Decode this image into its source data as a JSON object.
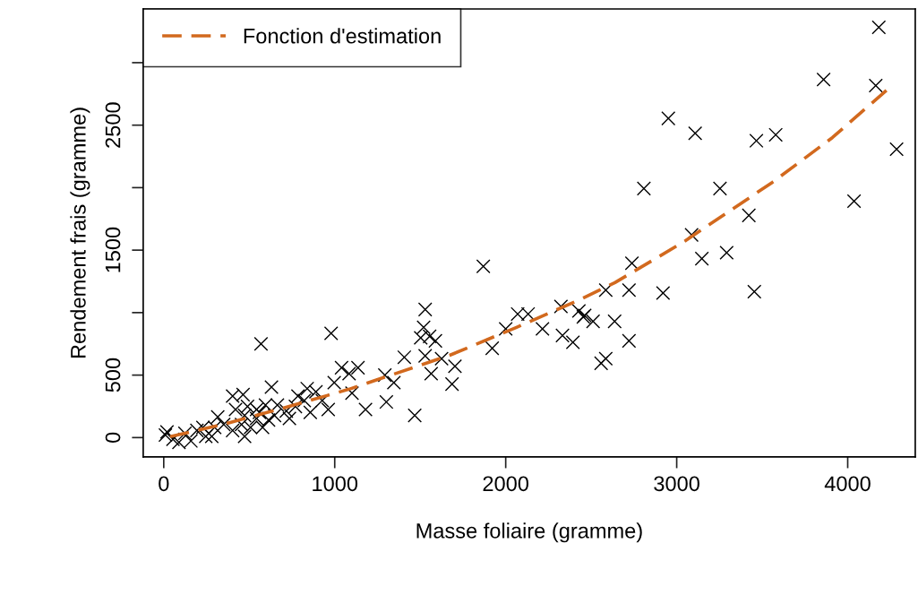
{
  "chart_data": {
    "type": "scatter",
    "xlabel": "Masse foliaire (gramme)",
    "ylabel": "Rendement frais (gramme)",
    "xlim": [
      -120,
      4395
    ],
    "ylim": [
      -155,
      3430
    ],
    "xticks": [
      0,
      1000,
      2000,
      3000,
      4000
    ],
    "yticks": [
      0,
      500,
      {
        "value": 1000,
        "label": null
      },
      1500,
      {
        "value": 2000,
        "label": null
      },
      2500,
      {
        "value": 3000,
        "label": null
      }
    ],
    "grid": false,
    "legend": "top left",
    "series": [
      {
        "color": "#000000",
        "marker": "cross",
        "x": [
          4182,
          3859,
          4164,
          2951,
          3108,
          3466,
          3579,
          4286,
          2808,
          3253,
          4037,
          3422,
          3087,
          2738,
          3147,
          3292,
          2585,
          2721,
          2920,
          3454,
          2462,
          2511,
          2637,
          2721,
          2585,
          2558,
          1869,
          1529,
          1520,
          1503,
          1555,
          1589,
          1529,
          1407,
          1625,
          1703,
          1564,
          1686,
          1468,
          1921,
          2000,
          2070,
          2131,
          2215,
          2323,
          2332,
          2393,
          2428,
          2454,
          569,
          979,
          1040,
          1136,
          1084,
          1293,
          1346,
          1180,
          1302,
          630,
          403,
          464,
          839,
          890,
          962,
          857,
          927,
          785,
          822,
          735,
          648,
          543,
          543,
          578,
          455,
          403,
          473,
          316,
          298,
          246,
          194,
          124,
          54,
          19,
          89,
          159,
          229,
          351,
          420,
          490,
          595,
          560,
          665,
          717,
          770,
          997,
          1101,
          473,
          613,
          508,
          281,
          10
        ],
        "values": [
          3283,
          2865,
          2817,
          2554,
          2435,
          2375,
          2423,
          2308,
          1993,
          1993,
          1892,
          1778,
          1622,
          1395,
          1432,
          1479,
          1180,
          1180,
          1157,
          1168,
          977,
          930,
          930,
          774,
          631,
          595,
          1370,
          1025,
          882,
          798,
          810,
          774,
          654,
          643,
          631,
          571,
          511,
          428,
          177,
          715,
          870,
          989,
          989,
          870,
          1049,
          817,
          762,
          1013,
          966,
          750,
          834,
          559,
          559,
          511,
          500,
          440,
          225,
          285,
          404,
          332,
          344,
          392,
          366,
          225,
          201,
          296,
          332,
          296,
          153,
          177,
          225,
          153,
          81,
          105,
          57,
          9,
          165,
          81,
          9,
          57,
          34,
          -14,
          45,
          -38,
          -27,
          81,
          105,
          225,
          249,
          261,
          201,
          261,
          213,
          249,
          440,
          356,
          177,
          141,
          81,
          9,
          20
        ]
      },
      {
        "type": "line",
        "name": "Fonction d'estimation",
        "color": "#d2691e",
        "marker": "none",
        "line_style": "dashed",
        "x": [
          37,
          351,
          702,
          1084,
          1675,
          2063,
          2445,
          2639,
          3037,
          3560,
          3911,
          4241
        ],
        "values": [
          7,
          107,
          237,
          387,
          660,
          882,
          1111,
          1240,
          1563,
          2043,
          2401,
          2796
        ]
      }
    ]
  }
}
